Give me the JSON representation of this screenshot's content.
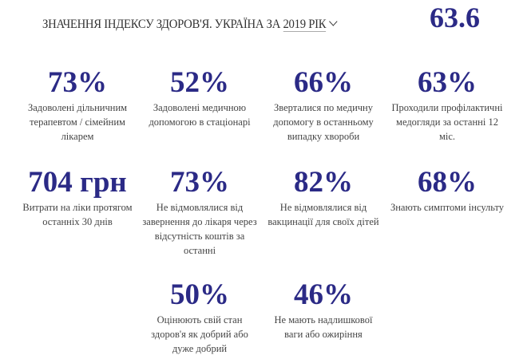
{
  "header": {
    "title": "ЗНАЧЕННЯ ІНДЕКСУ ЗДОРОВ'Я. УКРАЇНА ЗА",
    "year": "2019 РІК",
    "index_value": "63.6"
  },
  "stats": [
    {
      "value": "73%",
      "label": "Задоволені дільничним терапевтом / сімейним лікарем"
    },
    {
      "value": "52%",
      "label": "Задоволені медичною допомогою в стаціонарі"
    },
    {
      "value": "66%",
      "label": "Зверталися по медичну допомогу в останньому випадку хвороби"
    },
    {
      "value": "63%",
      "label": "Проходили профілактичні медогляди за останні 12 міс."
    },
    {
      "value": "704 грн",
      "label": "Витрати на ліки протягом останніх 30 днів"
    },
    {
      "value": "73%",
      "label": "Не відмовлялися від завернення до лікаря через відсутність коштів за останні"
    },
    {
      "value": "82%",
      "label": "Не відмовлялися від вакцинації для своїх дітей"
    },
    {
      "value": "68%",
      "label": "Знають симптоми інсульту"
    },
    {
      "value": "50%",
      "label": "Оцінюють свій стан здоров'я як добрий або дуже добрий"
    },
    {
      "value": "46%",
      "label": "Не мають надлишкової ваги або ожиріння"
    }
  ],
  "colors": {
    "accent": "#2b2a86",
    "text": "#444444"
  }
}
